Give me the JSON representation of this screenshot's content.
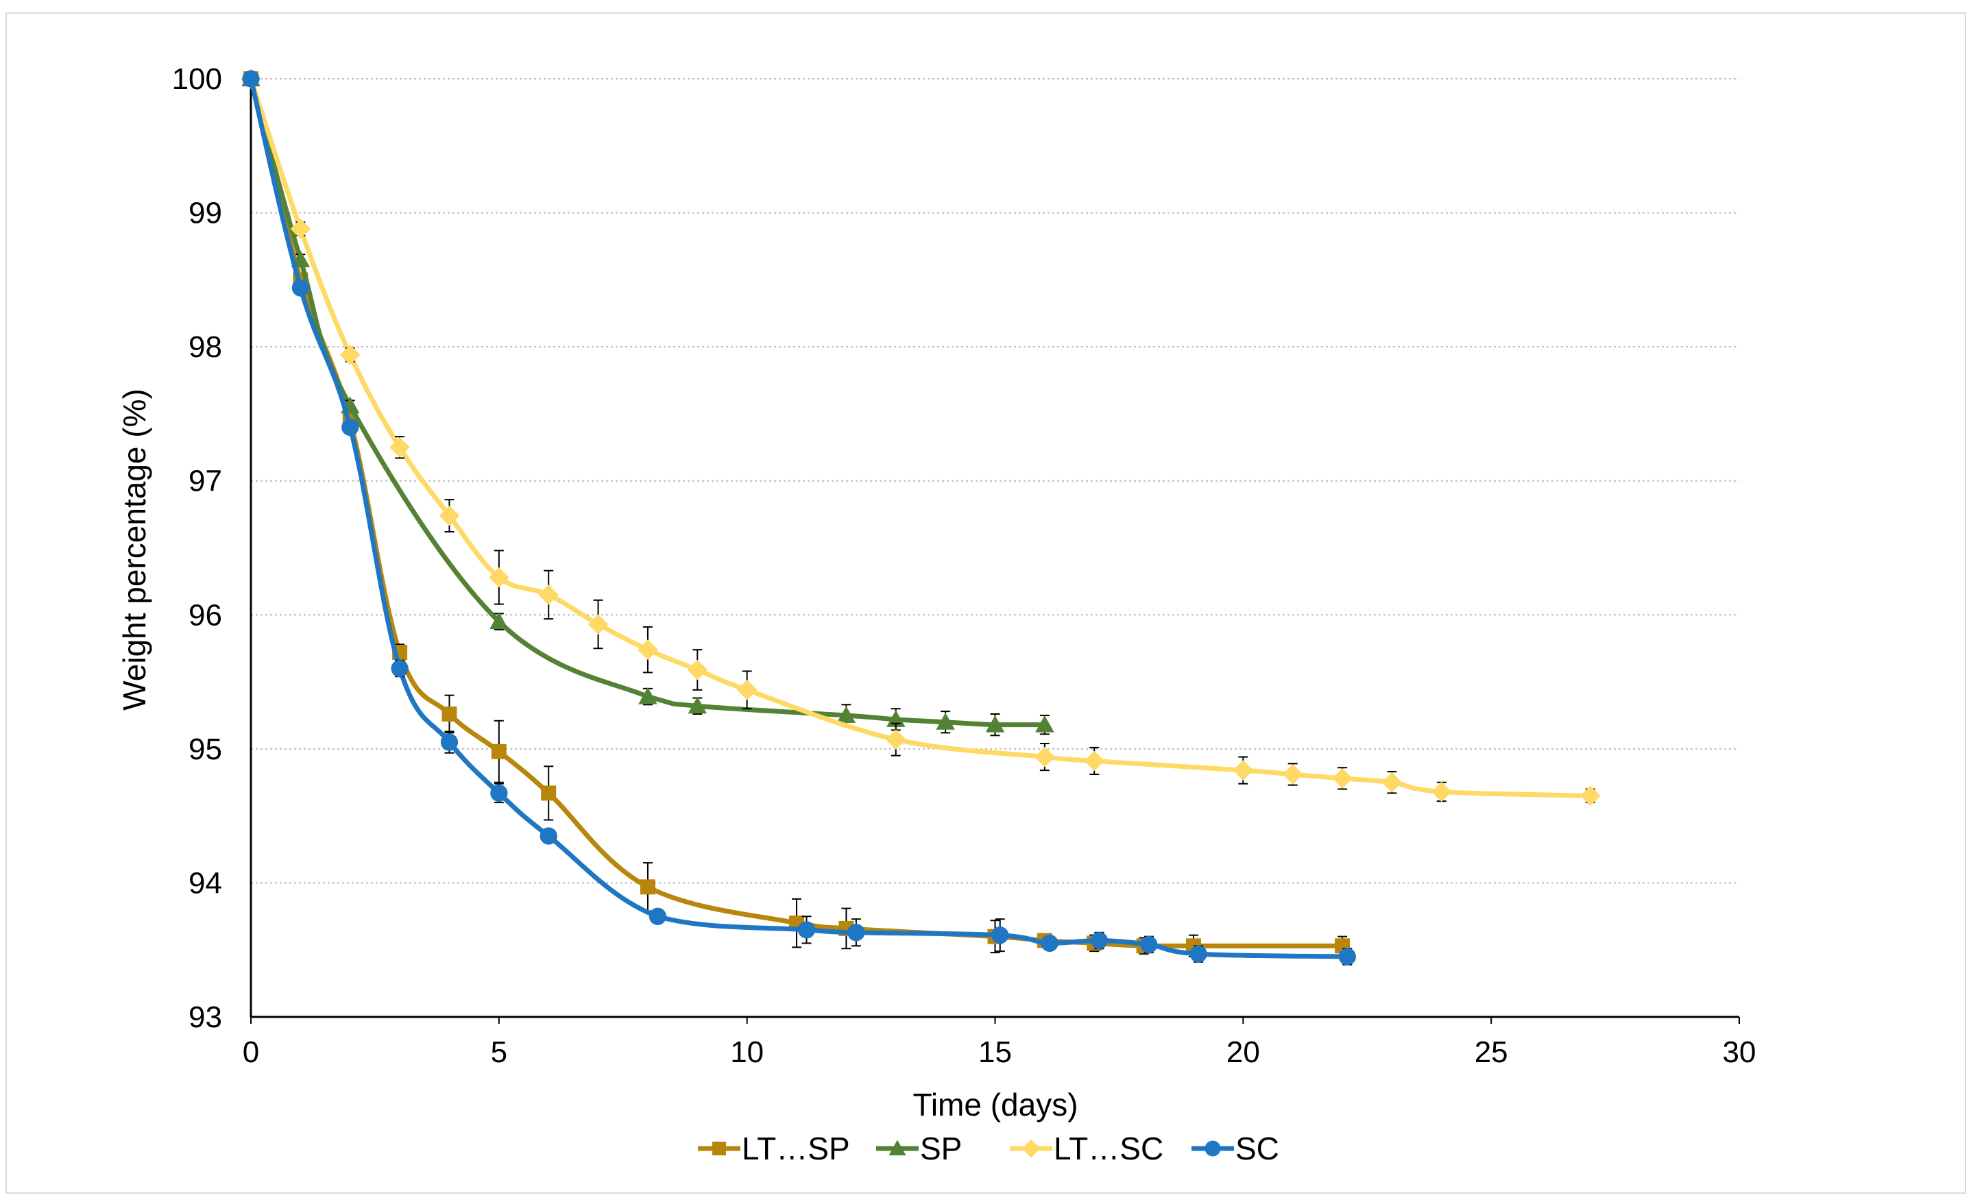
{
  "chart_data": {
    "type": "line",
    "title": "",
    "xlabel": "Time (days)",
    "ylabel": "Weight  percentage (%)",
    "xlim": [
      0,
      30
    ],
    "ylim": [
      93,
      100
    ],
    "xticks": [
      0,
      5,
      10,
      15,
      20,
      25,
      30
    ],
    "yticks": [
      93,
      94,
      95,
      96,
      97,
      98,
      99,
      100
    ],
    "grid": "horizontal dotted",
    "legend_position": "bottom",
    "series": [
      {
        "name": "LT…SP",
        "color": "#b8860b",
        "marker": "square",
        "x": [
          0,
          1,
          2,
          3,
          4,
          5,
          6,
          8,
          11,
          12,
          15,
          16,
          17,
          18,
          19,
          22
        ],
        "y": [
          100,
          98.5,
          97.45,
          95.72,
          95.26,
          94.98,
          94.67,
          93.97,
          93.7,
          93.66,
          93.6,
          93.57,
          93.55,
          93.53,
          93.53,
          93.53
        ],
        "err": [
          0,
          0.04,
          0.05,
          0.06,
          0.14,
          0.23,
          0.2,
          0.18,
          0.18,
          0.15,
          0.12,
          0.05,
          0.06,
          0.06,
          0.08,
          0.07
        ]
      },
      {
        "name": "SP",
        "color": "#548235",
        "marker": "triangle",
        "x": [
          0,
          1,
          2,
          5,
          8,
          9,
          12,
          13,
          14,
          15,
          16
        ],
        "y": [
          100,
          98.65,
          97.56,
          95.95,
          95.39,
          95.32,
          95.25,
          95.22,
          95.2,
          95.18,
          95.18
        ],
        "err": [
          0,
          0.04,
          0.04,
          0.06,
          0.06,
          0.06,
          0.08,
          0.08,
          0.08,
          0.08,
          0.07
        ]
      },
      {
        "name": "LT…SC",
        "color": "#ffd966",
        "marker": "diamond",
        "x": [
          0,
          1,
          2,
          3,
          4,
          5,
          6,
          7,
          8,
          9,
          10,
          13,
          16,
          17,
          20,
          21,
          22,
          23,
          24,
          27
        ],
        "y": [
          100,
          98.88,
          97.94,
          97.25,
          96.74,
          96.28,
          96.15,
          95.93,
          95.74,
          95.59,
          95.44,
          95.07,
          94.94,
          94.91,
          94.84,
          94.81,
          94.78,
          94.75,
          94.68,
          94.65
        ],
        "err": [
          0,
          0.05,
          0.05,
          0.08,
          0.12,
          0.2,
          0.18,
          0.18,
          0.17,
          0.15,
          0.14,
          0.12,
          0.1,
          0.1,
          0.1,
          0.08,
          0.08,
          0.08,
          0.07,
          0.05
        ]
      },
      {
        "name": "SC",
        "color": "#1f77c4",
        "marker": "circle",
        "x": [
          0,
          1,
          2,
          3,
          4,
          5,
          6,
          8.2,
          11.2,
          12.2,
          15.1,
          16.1,
          17.1,
          18.1,
          19.1,
          22.1
        ],
        "y": [
          100,
          98.44,
          97.4,
          95.6,
          95.05,
          94.67,
          94.35,
          93.75,
          93.65,
          93.63,
          93.61,
          93.55,
          93.57,
          93.54,
          93.47,
          93.45
        ],
        "err": [
          0,
          0.03,
          0.04,
          0.06,
          0.08,
          0.07,
          0.05,
          0.05,
          0.1,
          0.1,
          0.12,
          0.05,
          0.06,
          0.06,
          0.06,
          0.06
        ]
      }
    ]
  }
}
